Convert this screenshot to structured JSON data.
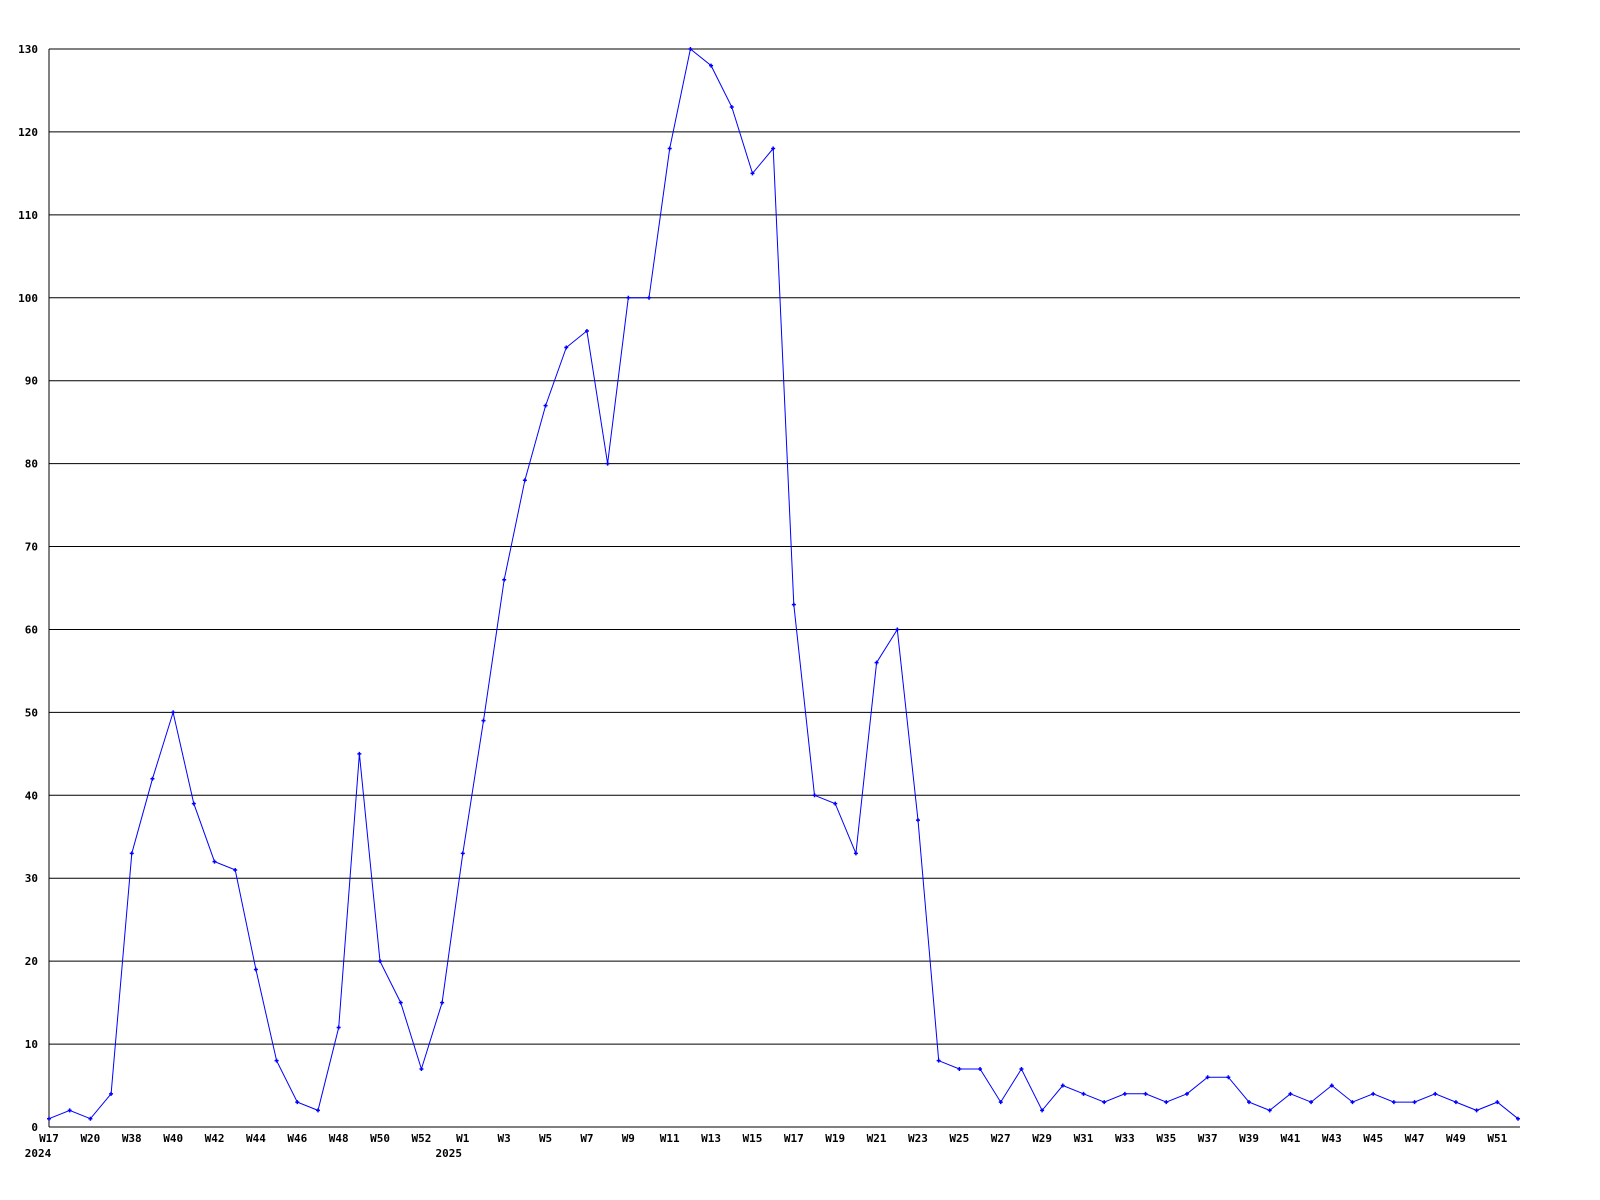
{
  "chart_data": {
    "type": "line",
    "title": "",
    "xlabel": "",
    "ylabel": "",
    "ylim": [
      0,
      130
    ],
    "yticks": [
      0,
      10,
      20,
      30,
      40,
      50,
      60,
      70,
      80,
      90,
      100,
      110,
      120,
      130
    ],
    "grid": "horizontal",
    "legend": "none",
    "line_color": "#0000ff",
    "grid_color": "#000000",
    "categories": [
      "W17",
      "",
      "W20",
      "",
      "W38",
      "",
      "W40",
      "",
      "W42",
      "",
      "W44",
      "",
      "W46",
      "",
      "W48",
      "",
      "W50",
      "",
      "W52",
      "",
      "W1",
      "",
      "W3",
      "",
      "W5",
      "",
      "W7",
      "",
      "W9",
      "",
      "W11",
      "",
      "W13",
      "",
      "W15",
      "",
      "W17",
      "",
      "W19",
      "",
      "W21",
      "",
      "W23",
      "",
      "W25",
      "",
      "W27",
      "",
      "W29",
      "",
      "W31",
      "",
      "W33",
      "",
      "W35",
      "",
      "W37",
      "",
      "W39",
      "",
      "W41",
      "",
      "W43",
      "",
      "W45",
      "",
      "W47",
      "",
      "W49",
      "",
      "W51",
      ""
    ],
    "year_labels": [
      {
        "index": 0,
        "label": "2024"
      },
      {
        "index": 20,
        "label": "2025"
      }
    ],
    "values": [
      1,
      2,
      1,
      4,
      33,
      42,
      50,
      39,
      32,
      31,
      19,
      8,
      3,
      2,
      12,
      45,
      20,
      15,
      7,
      15,
      33,
      49,
      66,
      78,
      87,
      94,
      96,
      80,
      100,
      100,
      118,
      130,
      128,
      123,
      115,
      118,
      63,
      40,
      39,
      33,
      56,
      60,
      37,
      8,
      7,
      7,
      3,
      7,
      2,
      5,
      4,
      3,
      4,
      4,
      3,
      4,
      6,
      6,
      3,
      2,
      4,
      3,
      5,
      3,
      4,
      3,
      3,
      4,
      3,
      2,
      3,
      1
    ]
  }
}
